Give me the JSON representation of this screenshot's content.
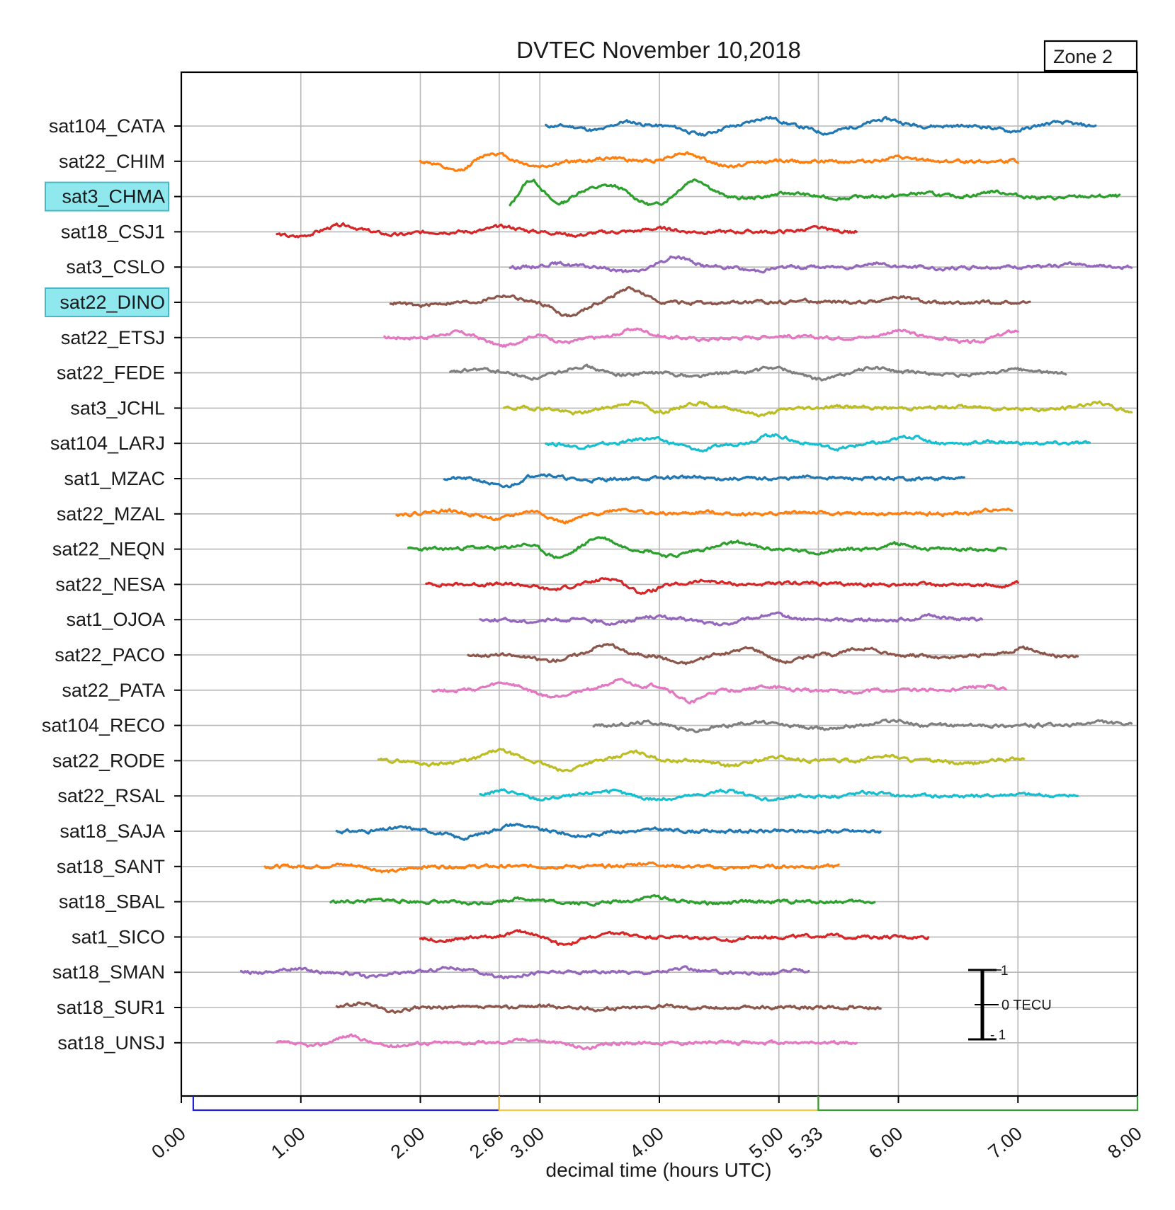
{
  "chart_data": {
    "type": "line",
    "title": "DVTEC November 10,2018",
    "zone_label": "Zone 2",
    "xlabel": "decimal time (hours UTC)",
    "xlim": [
      0,
      8
    ],
    "x_ticks": [
      "0.00",
      "1.00",
      "2.00",
      "2.66",
      "3.00",
      "4.00",
      "5.00",
      "5.33",
      "6.00",
      "7.00",
      "8.00"
    ],
    "x_tick_values": [
      0,
      1,
      2,
      2.66,
      3,
      4,
      5,
      5.33,
      6,
      7,
      8
    ],
    "period_brackets": [
      {
        "start": 0.1,
        "end": 2.66,
        "color": "#1f1fd6"
      },
      {
        "start": 2.66,
        "end": 5.33,
        "color": "#f2c94c"
      },
      {
        "start": 5.33,
        "end": 8.0,
        "color": "#3a9a3a"
      }
    ],
    "scale_bar": {
      "top": "1",
      "middle": "0 TECU",
      "bottom": "- 1"
    },
    "grid": true,
    "series": [
      {
        "name": "sat104_CATA",
        "color": "#1f77b4",
        "highlight": false,
        "start": 3.05,
        "end": 7.65,
        "seed": 11,
        "events": [
          [
            3.5,
            -0.3
          ],
          [
            3.7,
            0.3
          ],
          [
            4.35,
            -0.5
          ],
          [
            4.9,
            0.5
          ],
          [
            5.4,
            -0.4
          ],
          [
            5.9,
            0.4
          ],
          [
            6.95,
            -0.3
          ],
          [
            7.35,
            0.2
          ]
        ]
      },
      {
        "name": "sat22_CHIM",
        "color": "#ff7f0e",
        "highlight": false,
        "start": 2.0,
        "end": 7.0,
        "seed": 12,
        "events": [
          [
            2.3,
            -0.6
          ],
          [
            2.6,
            0.5
          ],
          [
            3.0,
            -0.3
          ],
          [
            3.6,
            0.2
          ],
          [
            4.2,
            0.5
          ],
          [
            4.6,
            -0.3
          ],
          [
            6.0,
            0.2
          ]
        ]
      },
      {
        "name": "sat3_CHMA",
        "color": "#2ca02c",
        "highlight": true,
        "start": 2.75,
        "end": 7.85,
        "seed": 13,
        "events": [
          [
            2.75,
            -1.1
          ],
          [
            2.9,
            1.4
          ],
          [
            3.15,
            -0.6
          ],
          [
            3.35,
            0.4
          ],
          [
            3.6,
            0.6
          ],
          [
            3.95,
            -0.5
          ],
          [
            4.3,
            1.0
          ],
          [
            4.7,
            -0.1
          ],
          [
            5.1,
            0.2
          ],
          [
            5.5,
            -0.1
          ],
          [
            6.2,
            0.2
          ],
          [
            6.8,
            0.3
          ],
          [
            7.3,
            -0.1
          ]
        ]
      },
      {
        "name": "sat18_CSJ1",
        "color": "#d62728",
        "highlight": false,
        "start": 0.8,
        "end": 5.65,
        "seed": 14,
        "events": [
          [
            0.95,
            -0.3
          ],
          [
            1.35,
            0.4
          ],
          [
            1.8,
            -0.2
          ],
          [
            2.7,
            0.3
          ],
          [
            3.3,
            -0.2
          ],
          [
            4.0,
            0.2
          ],
          [
            5.3,
            0.2
          ]
        ]
      },
      {
        "name": "sat3_CSLO",
        "color": "#9467bd",
        "highlight": false,
        "start": 2.75,
        "end": 7.95,
        "seed": 15,
        "events": [
          [
            3.15,
            0.2
          ],
          [
            3.75,
            -0.3
          ],
          [
            4.15,
            0.6
          ],
          [
            4.8,
            -0.2
          ],
          [
            5.8,
            0.2
          ],
          [
            6.4,
            -0.1
          ],
          [
            7.5,
            0.2
          ]
        ]
      },
      {
        "name": "sat22_DINO",
        "color": "#8c564b",
        "highlight": true,
        "start": 1.75,
        "end": 7.1,
        "seed": 16,
        "events": [
          [
            2.0,
            -0.2
          ],
          [
            2.7,
            0.4
          ],
          [
            3.25,
            -0.8
          ],
          [
            3.75,
            0.8
          ],
          [
            4.4,
            -0.1
          ],
          [
            5.2,
            0.1
          ],
          [
            6.0,
            0.3
          ],
          [
            6.5,
            -0.1
          ]
        ]
      },
      {
        "name": "sat22_ETSJ",
        "color": "#e377c2",
        "highlight": false,
        "start": 1.7,
        "end": 7.0,
        "seed": 17,
        "events": [
          [
            2.3,
            0.3
          ],
          [
            2.7,
            -0.5
          ],
          [
            3.0,
            0.2
          ],
          [
            3.2,
            -0.3
          ],
          [
            3.8,
            0.5
          ],
          [
            4.4,
            -0.1
          ],
          [
            5.0,
            0.1
          ],
          [
            6.0,
            0.4
          ],
          [
            6.6,
            -0.3
          ],
          [
            7.0,
            0.4
          ]
        ]
      },
      {
        "name": "sat22_FEDE",
        "color": "#7f7f7f",
        "highlight": false,
        "start": 2.25,
        "end": 7.4,
        "seed": 18,
        "events": [
          [
            2.5,
            0.2
          ],
          [
            2.95,
            -0.3
          ],
          [
            3.35,
            0.4
          ],
          [
            3.7,
            -0.1
          ],
          [
            4.3,
            -0.2
          ],
          [
            4.95,
            0.3
          ],
          [
            5.35,
            -0.4
          ],
          [
            5.8,
            0.3
          ],
          [
            6.5,
            -0.2
          ],
          [
            7.0,
            0.2
          ]
        ]
      },
      {
        "name": "sat3_JCHL",
        "color": "#bcbd22",
        "highlight": false,
        "start": 2.7,
        "end": 7.95,
        "seed": 19,
        "events": [
          [
            3.3,
            -0.3
          ],
          [
            3.8,
            0.4
          ],
          [
            4.0,
            -0.3
          ],
          [
            4.3,
            0.3
          ],
          [
            4.85,
            -0.4
          ],
          [
            5.5,
            0.1
          ],
          [
            6.5,
            0.1
          ],
          [
            7.2,
            -0.1
          ],
          [
            7.65,
            0.3
          ],
          [
            7.95,
            -0.2
          ]
        ]
      },
      {
        "name": "sat104_LARJ",
        "color": "#17becf",
        "highlight": false,
        "start": 3.05,
        "end": 7.6,
        "seed": 20,
        "events": [
          [
            3.35,
            -0.2
          ],
          [
            3.9,
            0.3
          ],
          [
            4.35,
            -0.4
          ],
          [
            4.95,
            0.5
          ],
          [
            5.5,
            -0.3
          ],
          [
            6.1,
            0.4
          ],
          [
            6.8,
            0.1
          ]
        ]
      },
      {
        "name": "sat1_MZAC",
        "color": "#1f77b4",
        "highlight": false,
        "start": 2.2,
        "end": 6.55,
        "seed": 21,
        "events": [
          [
            2.7,
            -0.5
          ],
          [
            3.0,
            0.3
          ],
          [
            3.4,
            -0.1
          ],
          [
            4.2,
            0.1
          ],
          [
            5.3,
            0.1
          ]
        ]
      },
      {
        "name": "sat22_MZAL",
        "color": "#ff7f0e",
        "highlight": false,
        "start": 1.8,
        "end": 6.95,
        "seed": 22,
        "events": [
          [
            2.2,
            0.2
          ],
          [
            2.65,
            -0.3
          ],
          [
            2.95,
            0.2
          ],
          [
            3.2,
            -0.5
          ],
          [
            3.7,
            0.3
          ],
          [
            4.4,
            0.1
          ],
          [
            5.2,
            0.1
          ],
          [
            6.85,
            0.3
          ]
        ]
      },
      {
        "name": "sat22_NEQN",
        "color": "#2ca02c",
        "highlight": false,
        "start": 1.9,
        "end": 6.9,
        "seed": 23,
        "events": [
          [
            2.45,
            0.1
          ],
          [
            2.9,
            0.3
          ],
          [
            3.15,
            -0.5
          ],
          [
            3.5,
            0.7
          ],
          [
            4.1,
            -0.4
          ],
          [
            4.65,
            0.4
          ],
          [
            5.3,
            -0.2
          ],
          [
            6.0,
            0.3
          ],
          [
            6.5,
            0.0
          ]
        ]
      },
      {
        "name": "sat22_NESA",
        "color": "#d62728",
        "highlight": false,
        "start": 2.05,
        "end": 7.0,
        "seed": 24,
        "events": [
          [
            3.1,
            -0.3
          ],
          [
            3.6,
            0.4
          ],
          [
            3.85,
            -0.5
          ],
          [
            4.4,
            0.2
          ],
          [
            5.2,
            0.1
          ],
          [
            6.9,
            -0.2
          ],
          [
            7.0,
            0.2
          ]
        ]
      },
      {
        "name": "sat1_OJOA",
        "color": "#9467bd",
        "highlight": false,
        "start": 2.5,
        "end": 6.7,
        "seed": 25,
        "events": [
          [
            2.9,
            -0.1
          ],
          [
            3.6,
            -0.2
          ],
          [
            3.95,
            0.2
          ],
          [
            4.5,
            -0.3
          ],
          [
            4.95,
            0.3
          ],
          [
            6.3,
            0.2
          ]
        ]
      },
      {
        "name": "sat22_PACO",
        "color": "#8c564b",
        "highlight": false,
        "start": 2.4,
        "end": 7.5,
        "seed": 26,
        "events": [
          [
            2.9,
            -0.1
          ],
          [
            3.1,
            -0.3
          ],
          [
            3.55,
            0.6
          ],
          [
            4.2,
            -0.5
          ],
          [
            4.75,
            0.4
          ],
          [
            5.05,
            -0.4
          ],
          [
            5.7,
            0.4
          ],
          [
            6.4,
            -0.2
          ],
          [
            7.05,
            0.4
          ],
          [
            7.4,
            -0.1
          ]
        ]
      },
      {
        "name": "sat22_PATA",
        "color": "#e377c2",
        "highlight": false,
        "start": 2.1,
        "end": 6.9,
        "seed": 27,
        "events": [
          [
            2.7,
            0.4
          ],
          [
            3.1,
            -0.4
          ],
          [
            3.65,
            0.5
          ],
          [
            4.0,
            0.3
          ],
          [
            4.25,
            -0.7
          ],
          [
            4.9,
            0.2
          ],
          [
            5.6,
            -0.1
          ],
          [
            6.7,
            0.2
          ]
        ]
      },
      {
        "name": "sat104_RECO",
        "color": "#7f7f7f",
        "highlight": false,
        "start": 3.45,
        "end": 7.95,
        "seed": 28,
        "events": [
          [
            3.9,
            0.2
          ],
          [
            4.3,
            -0.3
          ],
          [
            4.8,
            0.2
          ],
          [
            5.35,
            -0.2
          ],
          [
            5.95,
            0.3
          ],
          [
            6.6,
            0.0
          ],
          [
            7.7,
            0.2
          ]
        ]
      },
      {
        "name": "sat22_RODE",
        "color": "#bcbd22",
        "highlight": false,
        "start": 1.65,
        "end": 7.05,
        "seed": 29,
        "events": [
          [
            2.1,
            -0.2
          ],
          [
            2.66,
            0.6
          ],
          [
            3.2,
            -0.6
          ],
          [
            3.8,
            0.5
          ],
          [
            4.6,
            -0.3
          ],
          [
            5.0,
            0.2
          ],
          [
            5.9,
            0.3
          ],
          [
            6.55,
            -0.2
          ],
          [
            7.0,
            0.1
          ]
        ]
      },
      {
        "name": "sat22_RSAL",
        "color": "#17becf",
        "highlight": false,
        "start": 2.5,
        "end": 7.5,
        "seed": 30,
        "events": [
          [
            2.7,
            0.3
          ],
          [
            3.0,
            -0.2
          ],
          [
            3.55,
            0.3
          ],
          [
            4.0,
            -0.2
          ],
          [
            4.55,
            0.3
          ],
          [
            4.95,
            -0.2
          ],
          [
            5.75,
            0.2
          ],
          [
            6.4,
            0.0
          ],
          [
            7.0,
            0.1
          ]
        ]
      },
      {
        "name": "sat18_SAJA",
        "color": "#1f77b4",
        "highlight": false,
        "start": 1.3,
        "end": 5.85,
        "seed": 31,
        "events": [
          [
            1.85,
            0.2
          ],
          [
            2.35,
            -0.4
          ],
          [
            2.8,
            0.4
          ],
          [
            3.35,
            -0.3
          ],
          [
            4.0,
            0.1
          ],
          [
            4.8,
            0.0
          ],
          [
            5.6,
            0.0
          ]
        ]
      },
      {
        "name": "sat18_SANT",
        "color": "#ff7f0e",
        "highlight": false,
        "start": 0.7,
        "end": 5.5,
        "seed": 32,
        "events": [
          [
            1.35,
            0.1
          ],
          [
            1.75,
            -0.3
          ],
          [
            2.3,
            0.0
          ],
          [
            3.1,
            0.0
          ],
          [
            3.9,
            0.2
          ],
          [
            4.6,
            -0.1
          ],
          [
            5.3,
            0.0
          ]
        ]
      },
      {
        "name": "sat18_SBAL",
        "color": "#2ca02c",
        "highlight": false,
        "start": 1.25,
        "end": 5.8,
        "seed": 33,
        "events": [
          [
            1.7,
            0.1
          ],
          [
            2.4,
            -0.1
          ],
          [
            2.85,
            0.2
          ],
          [
            3.4,
            -0.1
          ],
          [
            3.95,
            0.3
          ],
          [
            4.5,
            -0.1
          ],
          [
            5.3,
            0.0
          ]
        ]
      },
      {
        "name": "sat1_SICO",
        "color": "#d62728",
        "highlight": false,
        "start": 2.0,
        "end": 6.25,
        "seed": 34,
        "events": [
          [
            2.2,
            -0.2
          ],
          [
            2.85,
            0.3
          ],
          [
            3.2,
            -0.4
          ],
          [
            3.65,
            0.2
          ],
          [
            4.55,
            -0.2
          ],
          [
            5.4,
            0.1
          ],
          [
            6.2,
            0.0
          ]
        ]
      },
      {
        "name": "sat18_SMAN",
        "color": "#9467bd",
        "highlight": false,
        "start": 0.5,
        "end": 5.25,
        "seed": 35,
        "events": [
          [
            0.95,
            0.2
          ],
          [
            1.6,
            -0.3
          ],
          [
            2.25,
            0.3
          ],
          [
            2.7,
            -0.3
          ],
          [
            3.5,
            0.0
          ],
          [
            4.2,
            0.2
          ],
          [
            4.9,
            -0.1
          ],
          [
            5.15,
            0.1
          ]
        ]
      },
      {
        "name": "sat18_SUR1",
        "color": "#8c564b",
        "highlight": false,
        "start": 1.3,
        "end": 5.85,
        "seed": 36,
        "events": [
          [
            1.55,
            0.3
          ],
          [
            1.75,
            -0.3
          ],
          [
            2.2,
            0.0
          ],
          [
            2.95,
            0.1
          ],
          [
            3.5,
            -0.1
          ],
          [
            4.05,
            0.1
          ],
          [
            5.2,
            0.0
          ]
        ]
      },
      {
        "name": "sat18_UNSJ",
        "color": "#e377c2",
        "highlight": false,
        "start": 0.8,
        "end": 5.65,
        "seed": 37,
        "events": [
          [
            1.1,
            -0.2
          ],
          [
            1.4,
            0.4
          ],
          [
            1.75,
            -0.2
          ],
          [
            2.6,
            0.0
          ],
          [
            2.9,
            0.2
          ],
          [
            3.4,
            -0.3
          ],
          [
            4.2,
            0.0
          ],
          [
            5.0,
            0.0
          ]
        ]
      }
    ]
  }
}
